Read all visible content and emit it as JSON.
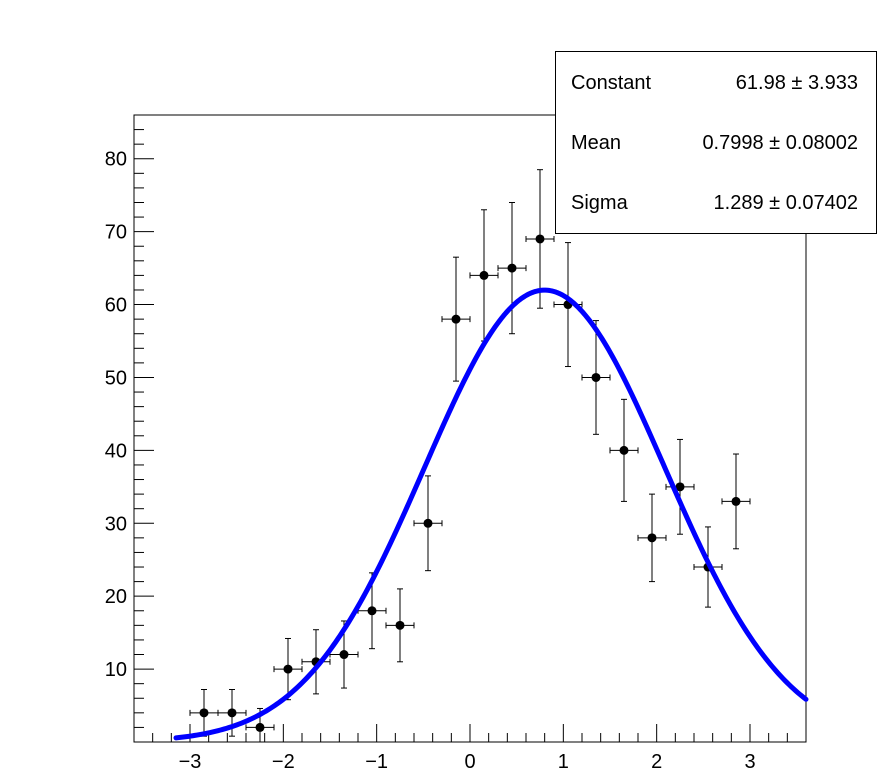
{
  "chart_data": {
    "type": "scatter",
    "title": "",
    "xlabel": "",
    "ylabel": "",
    "xlim": [
      -3.6,
      3.6
    ],
    "ylim": [
      0,
      86
    ],
    "x_ticks": [
      -3,
      -2,
      -1,
      0,
      1,
      2,
      3
    ],
    "x_tick_labels": [
      "−3",
      "−2",
      "−1",
      "0",
      "1",
      "2",
      "3"
    ],
    "y_ticks": [
      10,
      20,
      30,
      40,
      50,
      60,
      70,
      80
    ],
    "y_tick_labels": [
      "10",
      "20",
      "30",
      "40",
      "50",
      "60",
      "70",
      "80"
    ],
    "grid": false,
    "series": [
      {
        "type": "scatter-errorbars",
        "x_halfwidth": 0.15,
        "color": "#000000",
        "points": [
          {
            "x": -2.85,
            "y": 4,
            "err": 3.2
          },
          {
            "x": -2.55,
            "y": 4,
            "err": 3.2
          },
          {
            "x": -2.25,
            "y": 2,
            "err": 2.6
          },
          {
            "x": -1.95,
            "y": 10,
            "err": 4.2
          },
          {
            "x": -1.65,
            "y": 11,
            "err": 4.4
          },
          {
            "x": -1.35,
            "y": 12,
            "err": 4.6
          },
          {
            "x": -1.05,
            "y": 18,
            "err": 5.2
          },
          {
            "x": -0.75,
            "y": 16,
            "err": 5.0
          },
          {
            "x": -0.45,
            "y": 30,
            "err": 6.5
          },
          {
            "x": -0.15,
            "y": 58,
            "err": 8.5
          },
          {
            "x": 0.15,
            "y": 64,
            "err": 9.0
          },
          {
            "x": 0.45,
            "y": 65,
            "err": 9.0
          },
          {
            "x": 0.75,
            "y": 69,
            "err": 9.5
          },
          {
            "x": 1.05,
            "y": 60,
            "err": 8.5
          },
          {
            "x": 1.35,
            "y": 50,
            "err": 7.8
          },
          {
            "x": 1.65,
            "y": 40,
            "err": 7.0
          },
          {
            "x": 1.95,
            "y": 28,
            "err": 6.0
          },
          {
            "x": 2.25,
            "y": 35,
            "err": 6.5
          },
          {
            "x": 2.55,
            "y": 24,
            "err": 5.5
          },
          {
            "x": 2.85,
            "y": 33,
            "err": 6.5
          }
        ]
      },
      {
        "type": "line",
        "function": "gaussian",
        "color": "#0000ff",
        "constant": 61.98,
        "mean": 0.7998,
        "sigma": 1.289,
        "x_range": [
          -3.15,
          3.6
        ]
      }
    ]
  },
  "stats": [
    {
      "name": "Constant",
      "value": "61.98",
      "error": "3.933"
    },
    {
      "name": "Mean",
      "value": "0.7998",
      "error": "0.08002"
    },
    {
      "name": "Sigma",
      "value": "1.289",
      "error": "0.07402"
    }
  ]
}
